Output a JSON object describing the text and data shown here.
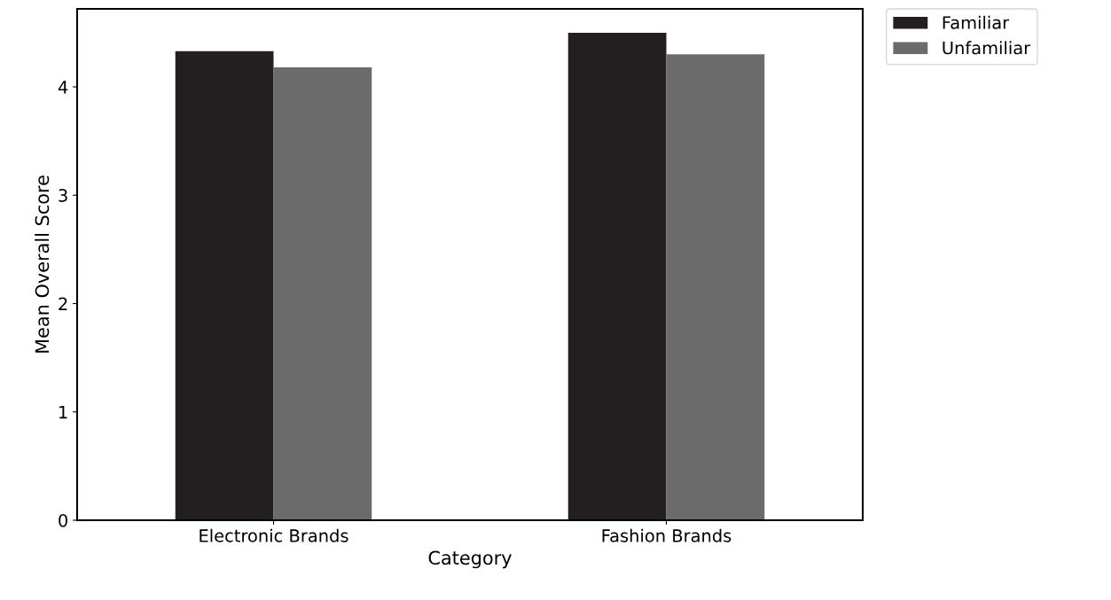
{
  "chart_data": {
    "type": "bar",
    "xlabel": "Category",
    "ylabel": "Mean Overall Score",
    "categories": [
      "Electronic Brands",
      "Fashion Brands"
    ],
    "series": [
      {
        "name": "Familiar",
        "color": "#231f20",
        "values": [
          4.33,
          4.5
        ]
      },
      {
        "name": "Unfamiliar",
        "color": "#6b6b6b",
        "values": [
          4.18,
          4.3
        ]
      }
    ],
    "ylim": [
      0,
      4.72
    ],
    "yticks": [
      0,
      1,
      2,
      3,
      4
    ],
    "grid": false,
    "legend": "top right"
  }
}
